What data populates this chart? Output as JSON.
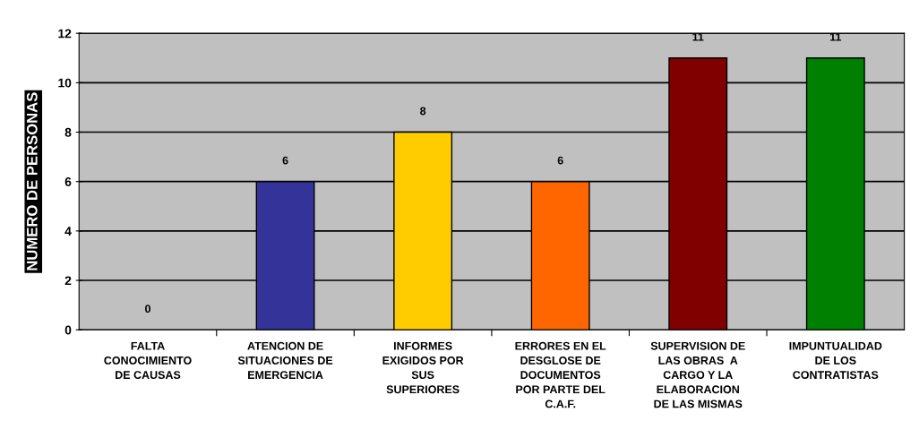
{
  "chart_data": {
    "type": "bar",
    "ylabel": "NUMERO DE PERSONAS",
    "categories": [
      "FALTA\nCONOCIMIENTO\nDE CAUSAS",
      "ATENCION DE\nSITUACIONES DE\nEMERGENCIA",
      "INFORMES\nEXIGIDOS POR\nSUS\nSUPERIORES",
      "ERRORES EN EL\nDESGLOSE DE\nDOCUMENTOS\nPOR PARTE DEL\nC.A.F.",
      "SUPERVISION DE\nLAS OBRAS  A\nCARGO Y LA\nELABORACION\nDE LAS MISMAS",
      "IMPUNTUALIDAD\nDE LOS\nCONTRATISTAS"
    ],
    "values": [
      0,
      6,
      8,
      6,
      11,
      11
    ],
    "colors": [
      null,
      "#333399",
      "#ffcc00",
      "#ff6600",
      "#800000",
      "#008000"
    ],
    "ylim": [
      0,
      12
    ],
    "yticks": [
      0,
      2,
      4,
      6,
      8,
      10,
      12
    ],
    "grid": "y",
    "data_labels": true
  }
}
